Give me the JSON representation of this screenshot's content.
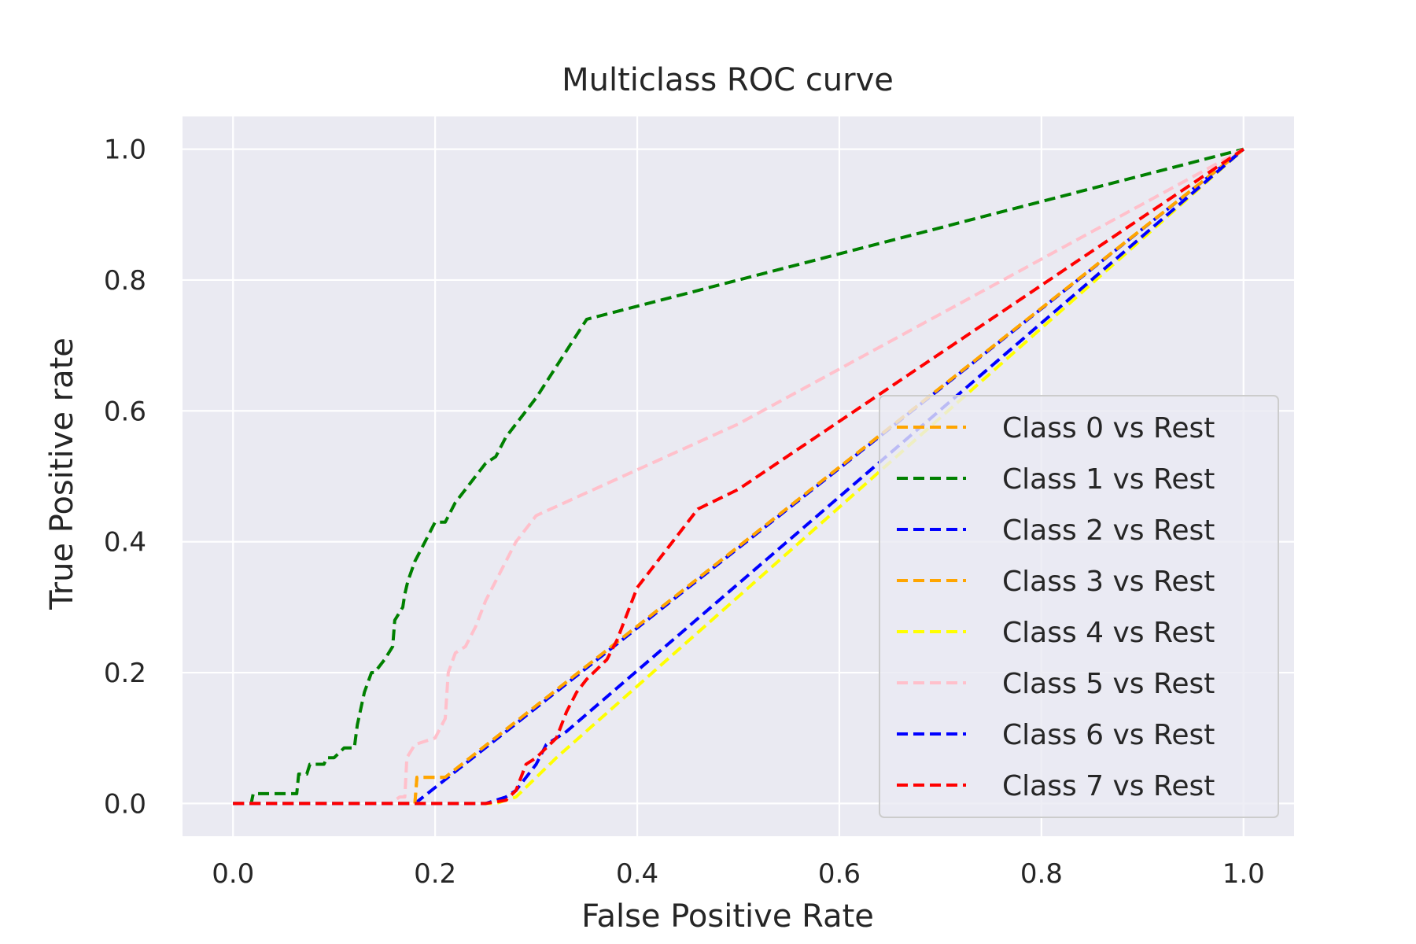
{
  "chart_data": {
    "type": "line",
    "title": "Multiclass ROC curve",
    "xlabel": "False Positive Rate",
    "ylabel": "True Positive rate",
    "xlim": [
      -0.05,
      1.05
    ],
    "ylim": [
      -0.05,
      1.05
    ],
    "xticks": [
      0.0,
      0.2,
      0.4,
      0.6,
      0.8,
      1.0
    ],
    "xtick_labels": [
      "0.0",
      "0.2",
      "0.4",
      "0.6",
      "0.8",
      "1.0"
    ],
    "yticks": [
      0.0,
      0.2,
      0.4,
      0.6,
      0.8,
      1.0
    ],
    "ytick_labels": [
      "0.0",
      "0.2",
      "0.4",
      "0.6",
      "0.8",
      "1.0"
    ],
    "grid": true,
    "background_color": "#eaeaf2",
    "legend_position": "lower-right",
    "line_style": "dashed",
    "series": [
      {
        "name": "Class 0 vs Rest",
        "color": "#ffa500",
        "x": [
          0.0,
          0.18,
          0.182,
          0.21,
          1.0
        ],
        "y": [
          0.0,
          0.0,
          0.04,
          0.04,
          1.0
        ]
      },
      {
        "name": "Class 1 vs Rest",
        "color": "#008000",
        "x": [
          0.0,
          0.018,
          0.02,
          0.063,
          0.065,
          0.073,
          0.076,
          0.09,
          0.093,
          0.1,
          0.11,
          0.12,
          0.123,
          0.13,
          0.137,
          0.14,
          0.15,
          0.158,
          0.16,
          0.168,
          0.17,
          0.173,
          0.18,
          0.19,
          0.2,
          0.21,
          0.22,
          0.23,
          0.24,
          0.25,
          0.26,
          0.27,
          0.28,
          0.3,
          0.35,
          1.0
        ],
        "y": [
          0.0,
          0.0,
          0.015,
          0.015,
          0.045,
          0.045,
          0.06,
          0.06,
          0.07,
          0.07,
          0.085,
          0.085,
          0.12,
          0.17,
          0.2,
          0.2,
          0.22,
          0.24,
          0.28,
          0.3,
          0.32,
          0.34,
          0.37,
          0.4,
          0.43,
          0.43,
          0.46,
          0.48,
          0.5,
          0.52,
          0.53,
          0.56,
          0.58,
          0.62,
          0.74,
          1.0
        ]
      },
      {
        "name": "Class 2 vs Rest",
        "color": "#0000ff",
        "x": [
          0.0,
          0.18,
          1.0
        ],
        "y": [
          0.0,
          0.0,
          1.0
        ]
      },
      {
        "name": "Class 3 vs Rest",
        "color": "#ffa500",
        "x": [
          0.0,
          0.18,
          0.182,
          0.21,
          1.0
        ],
        "y": [
          0.0,
          0.0,
          0.04,
          0.04,
          1.0
        ]
      },
      {
        "name": "Class 4 vs Rest",
        "color": "#ffff00",
        "x": [
          0.0,
          0.22,
          0.26,
          0.28,
          0.32,
          1.0
        ],
        "y": [
          0.0,
          0.0,
          0.0,
          0.01,
          0.07,
          1.0
        ]
      },
      {
        "name": "Class 5 vs Rest",
        "color": "#ffc0cb",
        "x": [
          0.0,
          0.155,
          0.165,
          0.17,
          0.172,
          0.18,
          0.2,
          0.21,
          0.213,
          0.22,
          0.23,
          0.24,
          0.25,
          0.26,
          0.27,
          0.28,
          0.3,
          0.5,
          1.0
        ],
        "y": [
          0.0,
          0.0,
          0.01,
          0.01,
          0.07,
          0.09,
          0.1,
          0.13,
          0.2,
          0.23,
          0.24,
          0.27,
          0.31,
          0.34,
          0.37,
          0.4,
          0.44,
          0.58,
          1.0
        ]
      },
      {
        "name": "Class 6 vs Rest",
        "color": "#0000ff",
        "x": [
          0.0,
          0.25,
          0.27,
          0.28,
          0.3,
          0.31,
          0.32,
          0.33,
          1.0
        ],
        "y": [
          0.0,
          0.0,
          0.01,
          0.02,
          0.06,
          0.09,
          0.1,
          0.11,
          1.0
        ]
      },
      {
        "name": "Class 7 vs Rest",
        "color": "#ff0000",
        "x": [
          0.0,
          0.25,
          0.27,
          0.28,
          0.29,
          0.3,
          0.32,
          0.33,
          0.34,
          0.35,
          0.37,
          0.38,
          0.39,
          0.4,
          0.42,
          0.44,
          0.46,
          0.5,
          1.0
        ],
        "y": [
          0.0,
          0.0,
          0.005,
          0.02,
          0.06,
          0.07,
          0.1,
          0.14,
          0.17,
          0.19,
          0.22,
          0.25,
          0.29,
          0.33,
          0.37,
          0.41,
          0.45,
          0.48,
          1.0
        ]
      }
    ]
  }
}
